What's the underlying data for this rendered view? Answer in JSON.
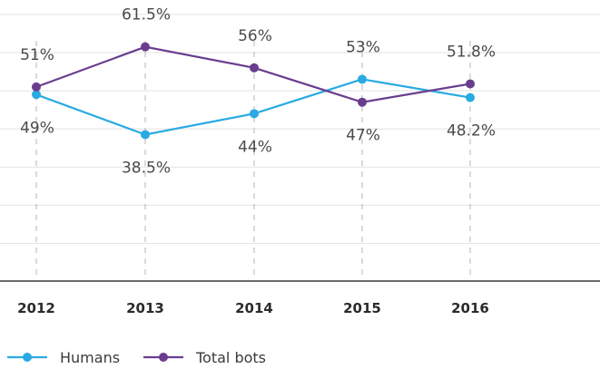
{
  "chart_data": {
    "type": "line",
    "x": [
      "2012",
      "2013",
      "2014",
      "2015",
      "2016"
    ],
    "series": [
      {
        "name": "Humans",
        "color": "#29abe2",
        "values": [
          49,
          38.5,
          44,
          53,
          48.2
        ],
        "labels": [
          "49%",
          "38.5%",
          "44%",
          "53%",
          "48.2%"
        ]
      },
      {
        "name": "Total bots",
        "color": "#6a3d8f",
        "values": [
          51,
          61.5,
          56,
          47,
          51.8
        ],
        "labels": [
          "51%",
          "61.5%",
          "56%",
          "47%",
          "51.8%"
        ]
      }
    ],
    "title": "",
    "xlabel": "",
    "ylabel": "",
    "ylim": [
      0,
      70
    ],
    "grid": true,
    "legend": "bottom-left"
  }
}
